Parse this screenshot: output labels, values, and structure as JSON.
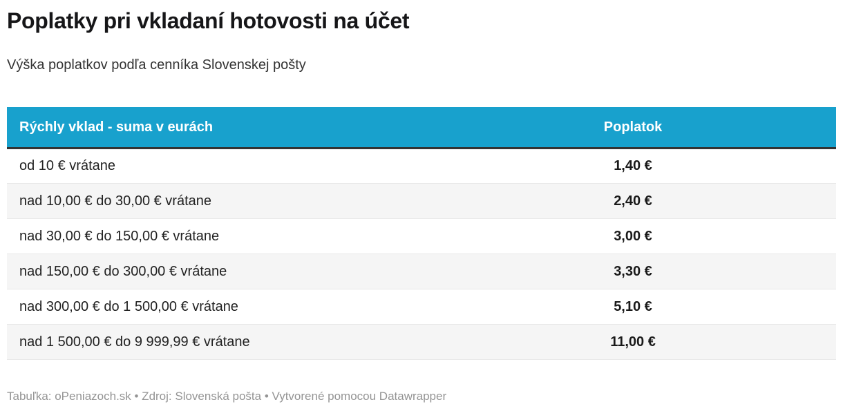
{
  "theme": {
    "accent": "#18a1cd",
    "header_text": "#ffffff",
    "header_border": "#333333",
    "row_alt_bg": "#f5f5f5",
    "row_border": "#e8e8e8",
    "text": "#1f1f1f",
    "muted": "#949494"
  },
  "header": {
    "title": "Poplatky pri vkladaní hotovosti na účet",
    "subtitle": "Výška poplatkov podľa cenníka Slovenskej pošty"
  },
  "table": {
    "columns": [
      {
        "key": "range",
        "label": "Rýchly vklad - suma v eurách",
        "align": "left"
      },
      {
        "key": "fee",
        "label": "Poplatok",
        "align": "center"
      }
    ],
    "rows": [
      {
        "range": "od 10 € vrátane",
        "fee": "1,40 €"
      },
      {
        "range": "nad 10,00 € do 30,00 € vrátane",
        "fee": "2,40 €"
      },
      {
        "range": "nad 30,00 € do 150,00 € vrátane",
        "fee": "3,00 €"
      },
      {
        "range": "nad 150,00 € do 300,00 € vrátane",
        "fee": "3,30 €"
      },
      {
        "range": "nad 300,00 € do 1 500,00 € vrátane",
        "fee": "5,10 €"
      },
      {
        "range": "nad 1 500,00 € do 9 999,99 € vrátane",
        "fee": "11,00 €"
      }
    ]
  },
  "footer": {
    "text": "Tabuľka: oPeniazoch.sk • Zdroj: Slovenská pošta • Vytvorené pomocou Datawrapper"
  },
  "chart_data": {
    "type": "table",
    "title": "Poplatky pri vkladaní hotovosti na účet",
    "subtitle": "Výška poplatkov podľa cenníka Slovenskej pošty",
    "columns": [
      "Rýchly vklad - suma v eurách",
      "Poplatok"
    ],
    "rows": [
      [
        "od 10 € vrátane",
        "1,40 €"
      ],
      [
        "nad 10,00 € do 30,00 € vrátane",
        "2,40 €"
      ],
      [
        "nad 30,00 € do 150,00 € vrátane",
        "3,00 €"
      ],
      [
        "nad 150,00 € do 300,00 € vrátane",
        "3,30 €"
      ],
      [
        "nad 300,00 € do 1 500,00 € vrátane",
        "5,10 €"
      ],
      [
        "nad 1 500,00 € do 9 999,99 € vrátane",
        "11,00 €"
      ]
    ],
    "fees_eur": [
      1.4,
      2.4,
      3.0,
      3.3,
      5.1,
      11.0
    ],
    "footer_credit": "Tabuľka: oPeniazoch.sk • Zdroj: Slovenská pošta • Vytvorené pomocou Datawrapper"
  }
}
